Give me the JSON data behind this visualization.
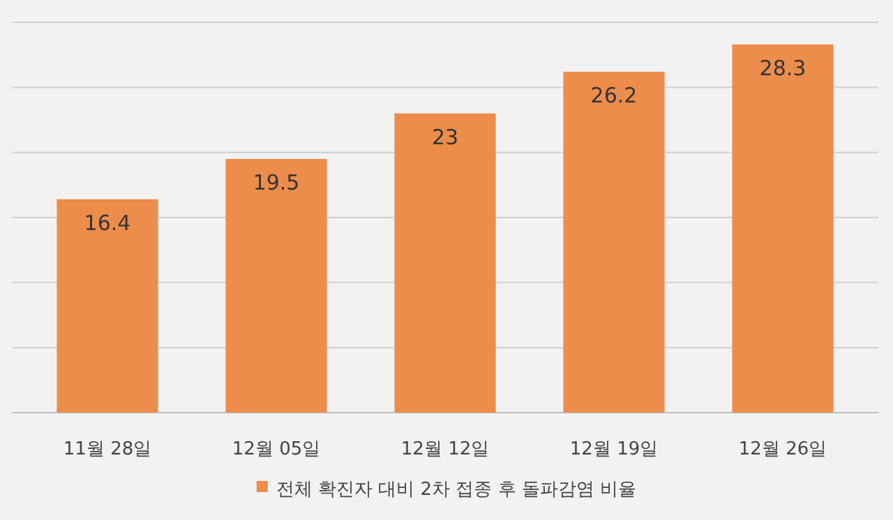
{
  "chart_data": {
    "type": "bar",
    "categories": [
      "11월 28일",
      "12월 05일",
      "12월 12일",
      "12월 19일",
      "12월 26일"
    ],
    "series": [
      {
        "name": "전체 확진자 대비 2차 접종 후 돌파감염 비율",
        "color": "#ed8d4c",
        "values": [
          16.4,
          19.5,
          23,
          26.2,
          28.3
        ]
      }
    ],
    "ylim": [
      0,
      30
    ],
    "yticks": [
      {
        "value": 0,
        "label": null
      },
      {
        "value": 5,
        "label": null
      },
      {
        "value": 10,
        "label": null
      },
      {
        "value": 15,
        "label": null
      },
      {
        "value": 20,
        "label": null
      },
      {
        "value": 25,
        "label": null
      },
      {
        "value": 30,
        "label": null
      }
    ],
    "tick_labels": "x",
    "grid": "y",
    "data_labels": true,
    "legend": "bottom"
  }
}
